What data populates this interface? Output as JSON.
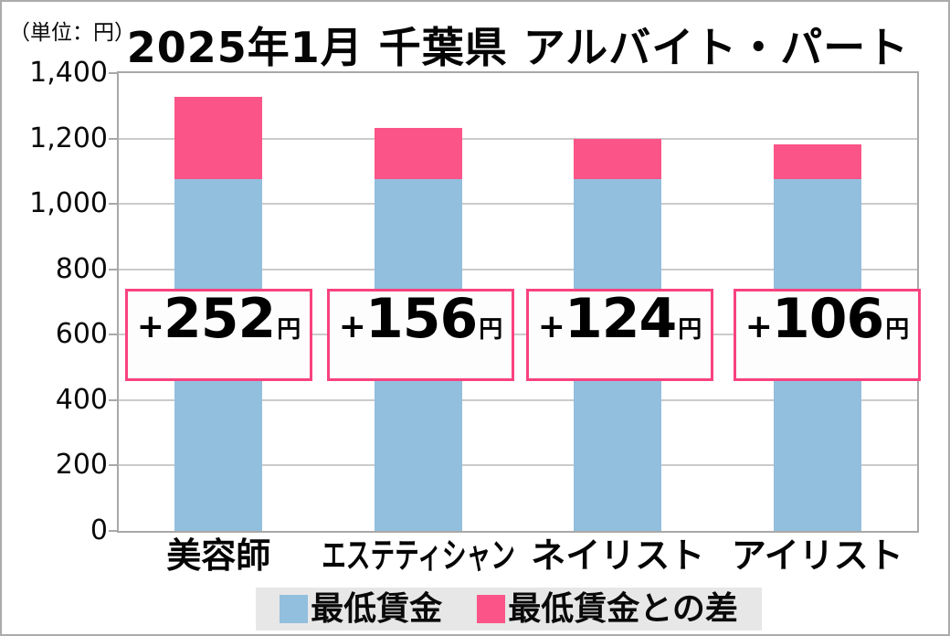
{
  "chart_data": {
    "type": "bar",
    "stacked": true,
    "title": "2025年1月 千葉県 アルバイト・パート",
    "unit_label": "（単位：円）",
    "categories": [
      "美容師",
      "エステティシャン",
      "ネイリスト",
      "アイリスト"
    ],
    "series": [
      {
        "name": "最低賃金",
        "color": "#92BFDE",
        "values": [
          1076,
          1076,
          1076,
          1076
        ]
      },
      {
        "name": "最低賃金との差",
        "color": "#FB5488",
        "values": [
          252,
          156,
          124,
          106
        ]
      }
    ],
    "totals": [
      1328,
      1232,
      1200,
      1182
    ],
    "diff_labels": [
      {
        "plus": "+",
        "value": "252",
        "unit": "円"
      },
      {
        "plus": "+",
        "value": "156",
        "unit": "円"
      },
      {
        "plus": "+",
        "value": "124",
        "unit": "円"
      },
      {
        "plus": "+",
        "value": "106",
        "unit": "円"
      }
    ],
    "ylim": [
      0,
      1400
    ],
    "ytick_step": 200,
    "ytick_labels": [
      "0",
      "200",
      "400",
      "600",
      "800",
      "1,000",
      "1,200",
      "1,400"
    ],
    "grid": true,
    "legend_position": "bottom",
    "colors": {
      "bar_blue": "#92BFDE",
      "bar_pink": "#FB5488",
      "callout_border": "#F8437E",
      "gridline": "#CBCBCB",
      "plot_border": "#A8A8A8",
      "legend_bg": "#E7E7E7",
      "text": "#050505"
    }
  }
}
